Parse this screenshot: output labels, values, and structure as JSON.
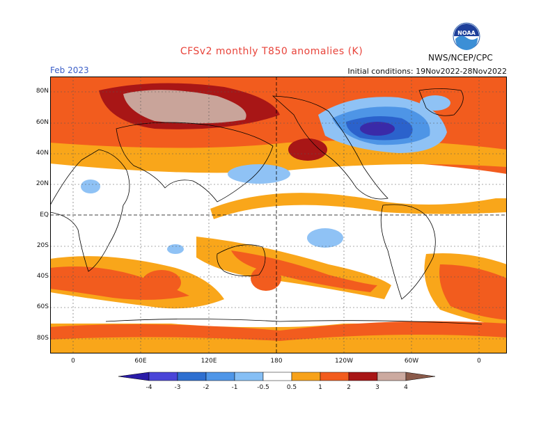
{
  "header": {
    "title": "CFSv2 monthly T850 anomalies (K)",
    "agency": "NWS/NCEP/CPC",
    "logo_text": "NOAA",
    "month": "Feb 2023",
    "initial_conditions": "Initial conditions: 19Nov2022-28Nov2022"
  },
  "axes": {
    "lat_ticks": [
      "80N",
      "60N",
      "40N",
      "20N",
      "EQ",
      "20S",
      "40S",
      "60S",
      "80S"
    ],
    "lon_ticks": [
      "0",
      "60E",
      "120E",
      "180",
      "120W",
      "60W",
      "0"
    ]
  },
  "colorbar": {
    "labels": [
      "-4",
      "-3",
      "-2",
      "-1",
      "-0.5",
      "0.5",
      "1",
      "2",
      "3",
      "4"
    ],
    "colors": [
      "#2a1ca8",
      "#4a45d8",
      "#2e6fd0",
      "#4f96e8",
      "#86bff5",
      "#ffffff",
      "#f7a21b",
      "#f25c1e",
      "#e23a12",
      "#b01c14",
      "#ccaaa0",
      "#8a5a4a"
    ]
  },
  "legend_colors": {
    "warm_light": "#f9a61a",
    "warm_mid": "#f25c1e",
    "warm_strong": "#e73b10",
    "warm_extreme": "#a81616",
    "warm_top": "#c9a49a",
    "cool_light": "#8fc2f5",
    "cool_mid": "#4e95e6",
    "cool_strong": "#2b62cc",
    "cool_extreme": "#3a2aa8"
  }
}
